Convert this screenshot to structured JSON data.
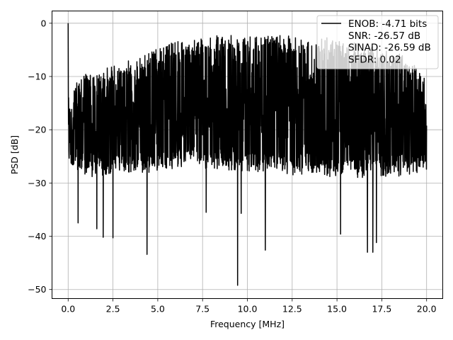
{
  "chart_data": {
    "type": "line",
    "xlabel": "Frequency [MHz]",
    "ylabel": "PSD [dB]",
    "xlim": [
      -0.9,
      20.9
    ],
    "ylim": [
      -51.7,
      2.3
    ],
    "xticks": [
      0.0,
      2.5,
      5.0,
      7.5,
      10.0,
      12.5,
      15.0,
      17.5,
      20.0
    ],
    "xtick_labels": [
      "0.0",
      "2.5",
      "5.0",
      "7.5",
      "10.0",
      "12.5",
      "15.0",
      "17.5",
      "20.0"
    ],
    "yticks": [
      0,
      -10,
      -20,
      -30,
      -40,
      -50
    ],
    "ytick_labels": [
      "0",
      "−10",
      "−20",
      "−30",
      "−40",
      "−50"
    ],
    "grid": true,
    "legend_position": "top-right",
    "legend": [
      {
        "label": "ENOB: -4.71 bits",
        "color": "#000000",
        "handle": "line"
      },
      {
        "label": "SNR: -26.57 dB",
        "color": "#ffffff",
        "handle": "none"
      },
      {
        "label": "SINAD: -26.59 dB",
        "color": "#ffffff",
        "handle": "none"
      },
      {
        "label": "SFDR: 0.02",
        "color": "#ffffff",
        "handle": "none"
      }
    ],
    "series": [
      {
        "color": "#000000",
        "description": "Dense noisy PSD trace spanning 0 to 20 MHz; peak of 0 dB at 0 MHz",
        "x_range": [
          0.0,
          20.0
        ],
        "peak": {
          "x": 0.0,
          "y": 0
        },
        "notable_minima": [
          {
            "x": 0.55,
            "y": -37.5
          },
          {
            "x": 1.6,
            "y": -38.6
          },
          {
            "x": 1.95,
            "y": -40.2
          },
          {
            "x": 2.5,
            "y": -40.3
          },
          {
            "x": 4.4,
            "y": -43.4
          },
          {
            "x": 7.7,
            "y": -35.5
          },
          {
            "x": 9.45,
            "y": -49.2
          },
          {
            "x": 9.65,
            "y": -35.7
          },
          {
            "x": 11.0,
            "y": -42.6
          },
          {
            "x": 15.2,
            "y": -39.6
          },
          {
            "x": 16.7,
            "y": -43.0
          },
          {
            "x": 17.0,
            "y": -43.0
          },
          {
            "x": 17.2,
            "y": -41.2
          }
        ],
        "envelope_upper": [
          [
            0.1,
            -15
          ],
          [
            0.5,
            -10
          ],
          [
            1.0,
            -9.5
          ],
          [
            2.0,
            -8.5
          ],
          [
            3.0,
            -7.5
          ],
          [
            4.0,
            -6
          ],
          [
            5.0,
            -4.5
          ],
          [
            6.0,
            -3.5
          ],
          [
            7.0,
            -2.8
          ],
          [
            8.0,
            -2.2
          ],
          [
            9.0,
            -2.0
          ],
          [
            10.0,
            -2.0
          ],
          [
            11.0,
            -2.0
          ],
          [
            12.0,
            -2.1
          ],
          [
            13.0,
            -2.3
          ],
          [
            14.0,
            -2.5
          ],
          [
            15.0,
            -3.0
          ],
          [
            16.0,
            -3.5
          ],
          [
            17.0,
            -4.0
          ],
          [
            18.0,
            -5.0
          ],
          [
            19.0,
            -6.5
          ],
          [
            20.0,
            -10.0
          ]
        ],
        "envelope_lower": [
          [
            0.1,
            -27
          ],
          [
            1.0,
            -29
          ],
          [
            2.0,
            -28.5
          ],
          [
            3.0,
            -28
          ],
          [
            4.0,
            -28
          ],
          [
            5.0,
            -28
          ],
          [
            6.0,
            -27.5
          ],
          [
            7.0,
            -27
          ],
          [
            8.0,
            -27.5
          ],
          [
            9.0,
            -28
          ],
          [
            10.0,
            -28
          ],
          [
            11.0,
            -28
          ],
          [
            12.0,
            -28.5
          ],
          [
            13.0,
            -28.5
          ],
          [
            14.0,
            -28.5
          ],
          [
            15.0,
            -29
          ],
          [
            16.0,
            -29
          ],
          [
            17.0,
            -29
          ],
          [
            18.0,
            -29
          ],
          [
            19.0,
            -28.5
          ],
          [
            20.0,
            -28
          ]
        ]
      }
    ]
  }
}
